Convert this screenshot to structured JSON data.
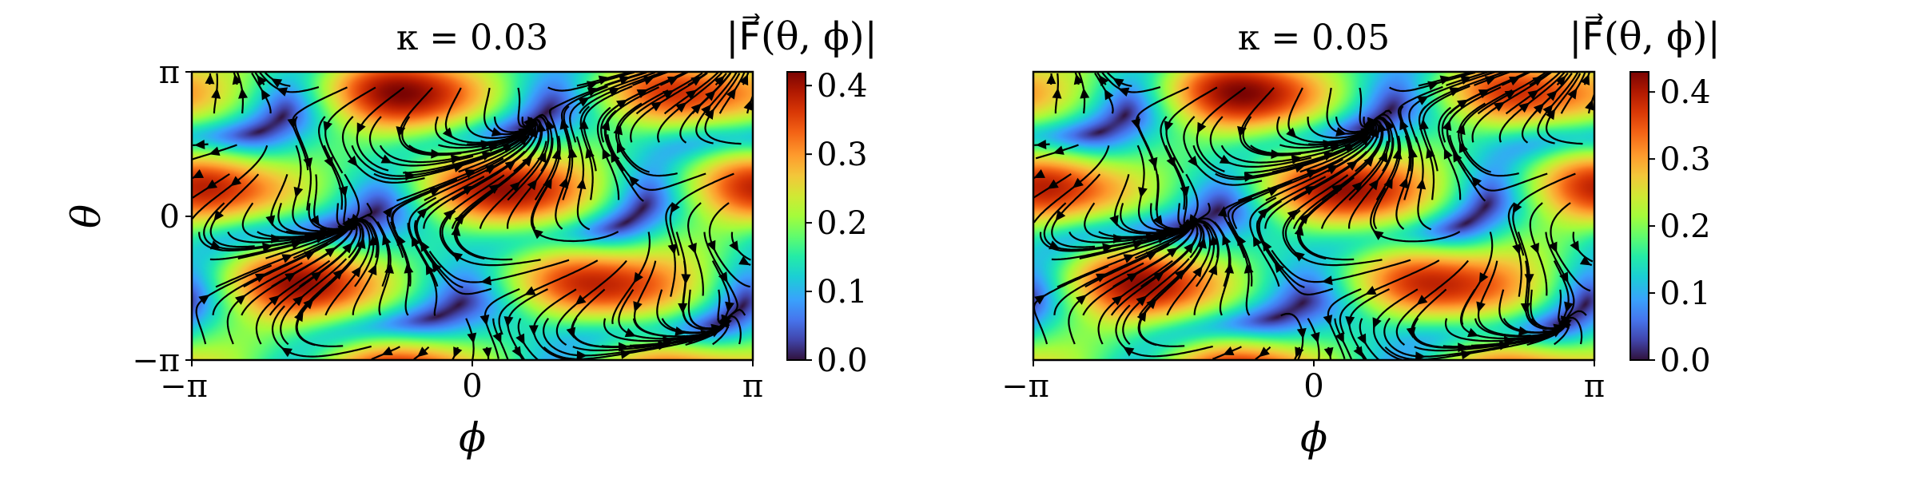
{
  "chart_data": [
    {
      "type": "heatmap",
      "subtype": "streamplot-over-magnitude",
      "title": "κ = 0.03",
      "kappa": 0.03,
      "xlabel": "ϕ",
      "ylabel": "θ",
      "xlim": [
        "-π",
        "π"
      ],
      "ylim": [
        "-π",
        "π"
      ],
      "x_ticks": [
        "−π",
        "0",
        "π"
      ],
      "y_ticks": [
        "π",
        "0",
        "−π"
      ],
      "colorbar": {
        "label": "|F⃗(θ, ϕ)|",
        "range": [
          0.0,
          0.42
        ],
        "ticks": [
          "0.0",
          "0.1",
          "0.2",
          "0.3",
          "0.4"
        ],
        "colormap": "turbo"
      },
      "magnitude_max": 0.42,
      "stream_color": "#000000"
    },
    {
      "type": "heatmap",
      "subtype": "streamplot-over-magnitude",
      "title": "κ = 0.05",
      "kappa": 0.05,
      "xlabel": "ϕ",
      "ylabel": "",
      "xlim": [
        "-π",
        "π"
      ],
      "ylim": [
        "-π",
        "π"
      ],
      "x_ticks": [
        "−π",
        "0",
        "π"
      ],
      "y_ticks": [],
      "colorbar": {
        "label": "|F⃗(θ, ϕ)|",
        "range": [
          0.0,
          0.43
        ],
        "ticks": [
          "0.0",
          "0.1",
          "0.2",
          "0.3",
          "0.4"
        ],
        "colormap": "turbo"
      },
      "magnitude_max": 0.43,
      "stream_color": "#000000"
    }
  ]
}
